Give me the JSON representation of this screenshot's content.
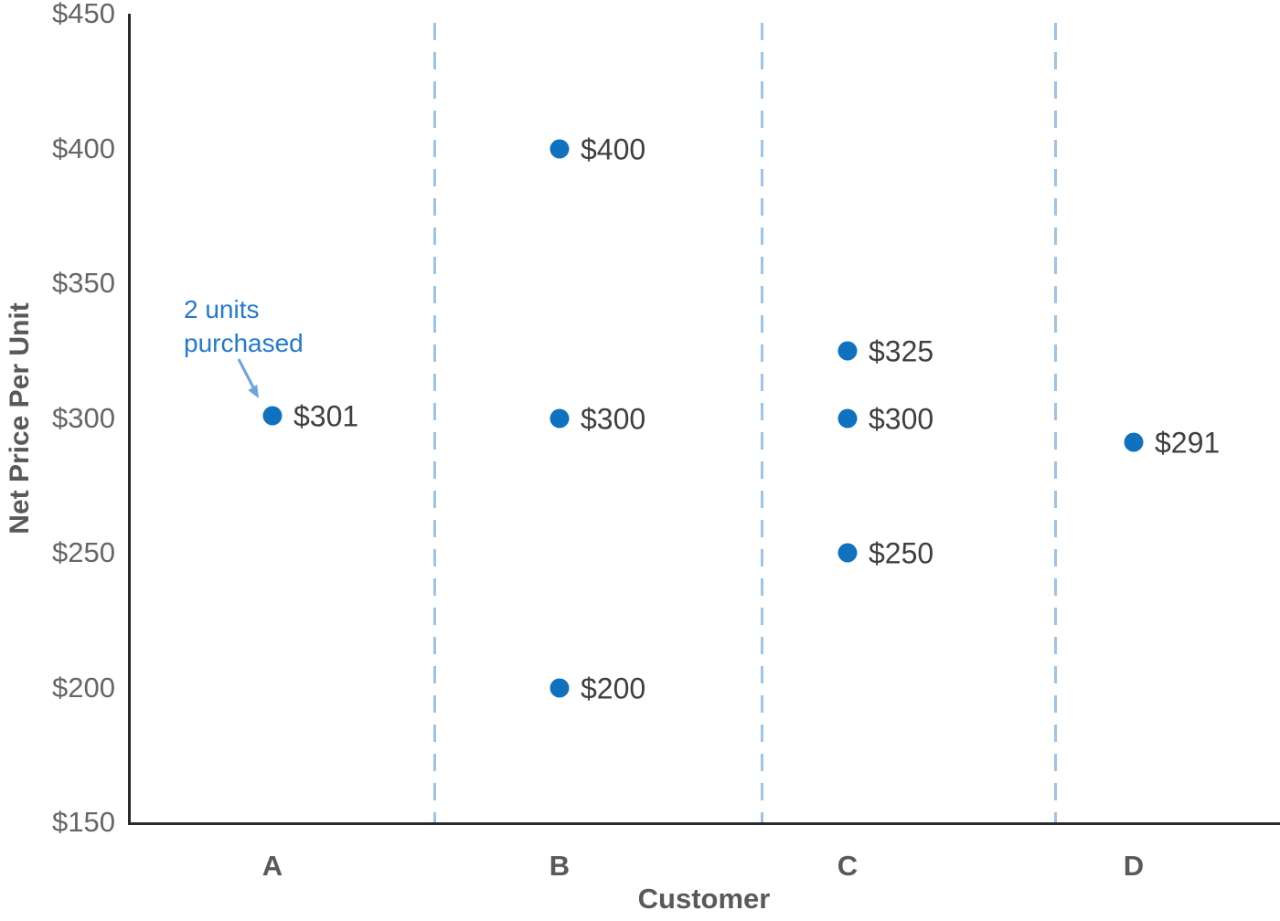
{
  "colors": {
    "background": "#ffffff",
    "dot_blue": "#1071BE",
    "annotation_blue": "#2479CE",
    "arrow_blue": "#6FA3DC",
    "separator_blue": "#9DC3E6",
    "axis_line": "#2B2B2B",
    "tick_gray": "#666666",
    "label_dark_gray": "#3F3F3F",
    "title_gray": "#595959"
  },
  "chart_data": {
    "type": "scatter",
    "title": "",
    "xlabel": "Customer",
    "ylabel": "Net Price Per Unit",
    "ylim": [
      150,
      450
    ],
    "grid": false,
    "legend": null,
    "y_ticks": [
      {
        "value": 450,
        "label": "$450"
      },
      {
        "value": 400,
        "label": "$400"
      },
      {
        "value": 350,
        "label": "$350"
      },
      {
        "value": 300,
        "label": "$300"
      },
      {
        "value": 250,
        "label": "$250"
      },
      {
        "value": 200,
        "label": "$200"
      },
      {
        "value": 150,
        "label": "$150"
      }
    ],
    "categories": [
      "A",
      "B",
      "C",
      "D"
    ],
    "points": [
      {
        "customer": "A",
        "value": 301,
        "label": "$301"
      },
      {
        "customer": "B",
        "value": 400,
        "label": "$400"
      },
      {
        "customer": "B",
        "value": 300,
        "label": "$300"
      },
      {
        "customer": "B",
        "value": 200,
        "label": "$200"
      },
      {
        "customer": "C",
        "value": 325,
        "label": "$325"
      },
      {
        "customer": "C",
        "value": 300,
        "label": "$300"
      },
      {
        "customer": "C",
        "value": 250,
        "label": "$250"
      },
      {
        "customer": "D",
        "value": 291,
        "label": "$291"
      }
    ],
    "separators_after": [
      "A",
      "B",
      "C"
    ],
    "annotation": {
      "text": "2 units purchased",
      "target": {
        "customer": "A",
        "value": 301
      }
    }
  }
}
